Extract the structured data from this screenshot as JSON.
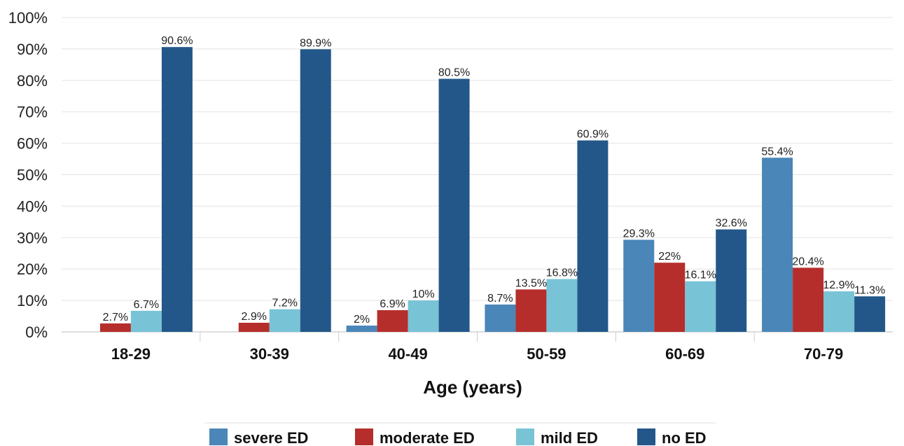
{
  "chart_data": {
    "type": "bar",
    "title": "",
    "xlabel": "Age (years)",
    "ylabel": "",
    "ylim": [
      0,
      100
    ],
    "yticks": [
      "0%",
      "10%",
      "20%",
      "30%",
      "40%",
      "50%",
      "60%",
      "70%",
      "80%",
      "90%",
      "100%"
    ],
    "grid": true,
    "legend_position": "bottom",
    "categories": [
      "18-29",
      "30-39",
      "40-49",
      "50-59",
      "60-69",
      "70-79"
    ],
    "series": [
      {
        "name": "severe ED",
        "color": "#4a86b8",
        "values": [
          null,
          null,
          2,
          8.7,
          29.3,
          55.4
        ],
        "labels": [
          "",
          "",
          "2%",
          "8.7%",
          "29.3%",
          "55.4%"
        ]
      },
      {
        "name": "moderate ED",
        "color": "#b52e2b",
        "values": [
          2.7,
          2.9,
          6.9,
          13.5,
          22,
          20.4
        ],
        "labels": [
          "2.7%",
          "2.9%",
          "6.9%",
          "13.5%",
          "22%",
          "20.4%"
        ]
      },
      {
        "name": "mild ED",
        "color": "#79c3d6",
        "values": [
          6.7,
          7.2,
          10,
          16.8,
          16.1,
          12.9
        ],
        "labels": [
          "6.7%",
          "7.2%",
          "10%",
          "16.8%",
          "16.1%",
          "12.9%"
        ]
      },
      {
        "name": "no ED",
        "color": "#235789",
        "values": [
          90.6,
          89.9,
          80.5,
          60.9,
          32.6,
          11.3
        ],
        "labels": [
          "90.6%",
          "89.9%",
          "80.5%",
          "60.9%",
          "32.6%",
          "11.3%"
        ]
      }
    ]
  }
}
